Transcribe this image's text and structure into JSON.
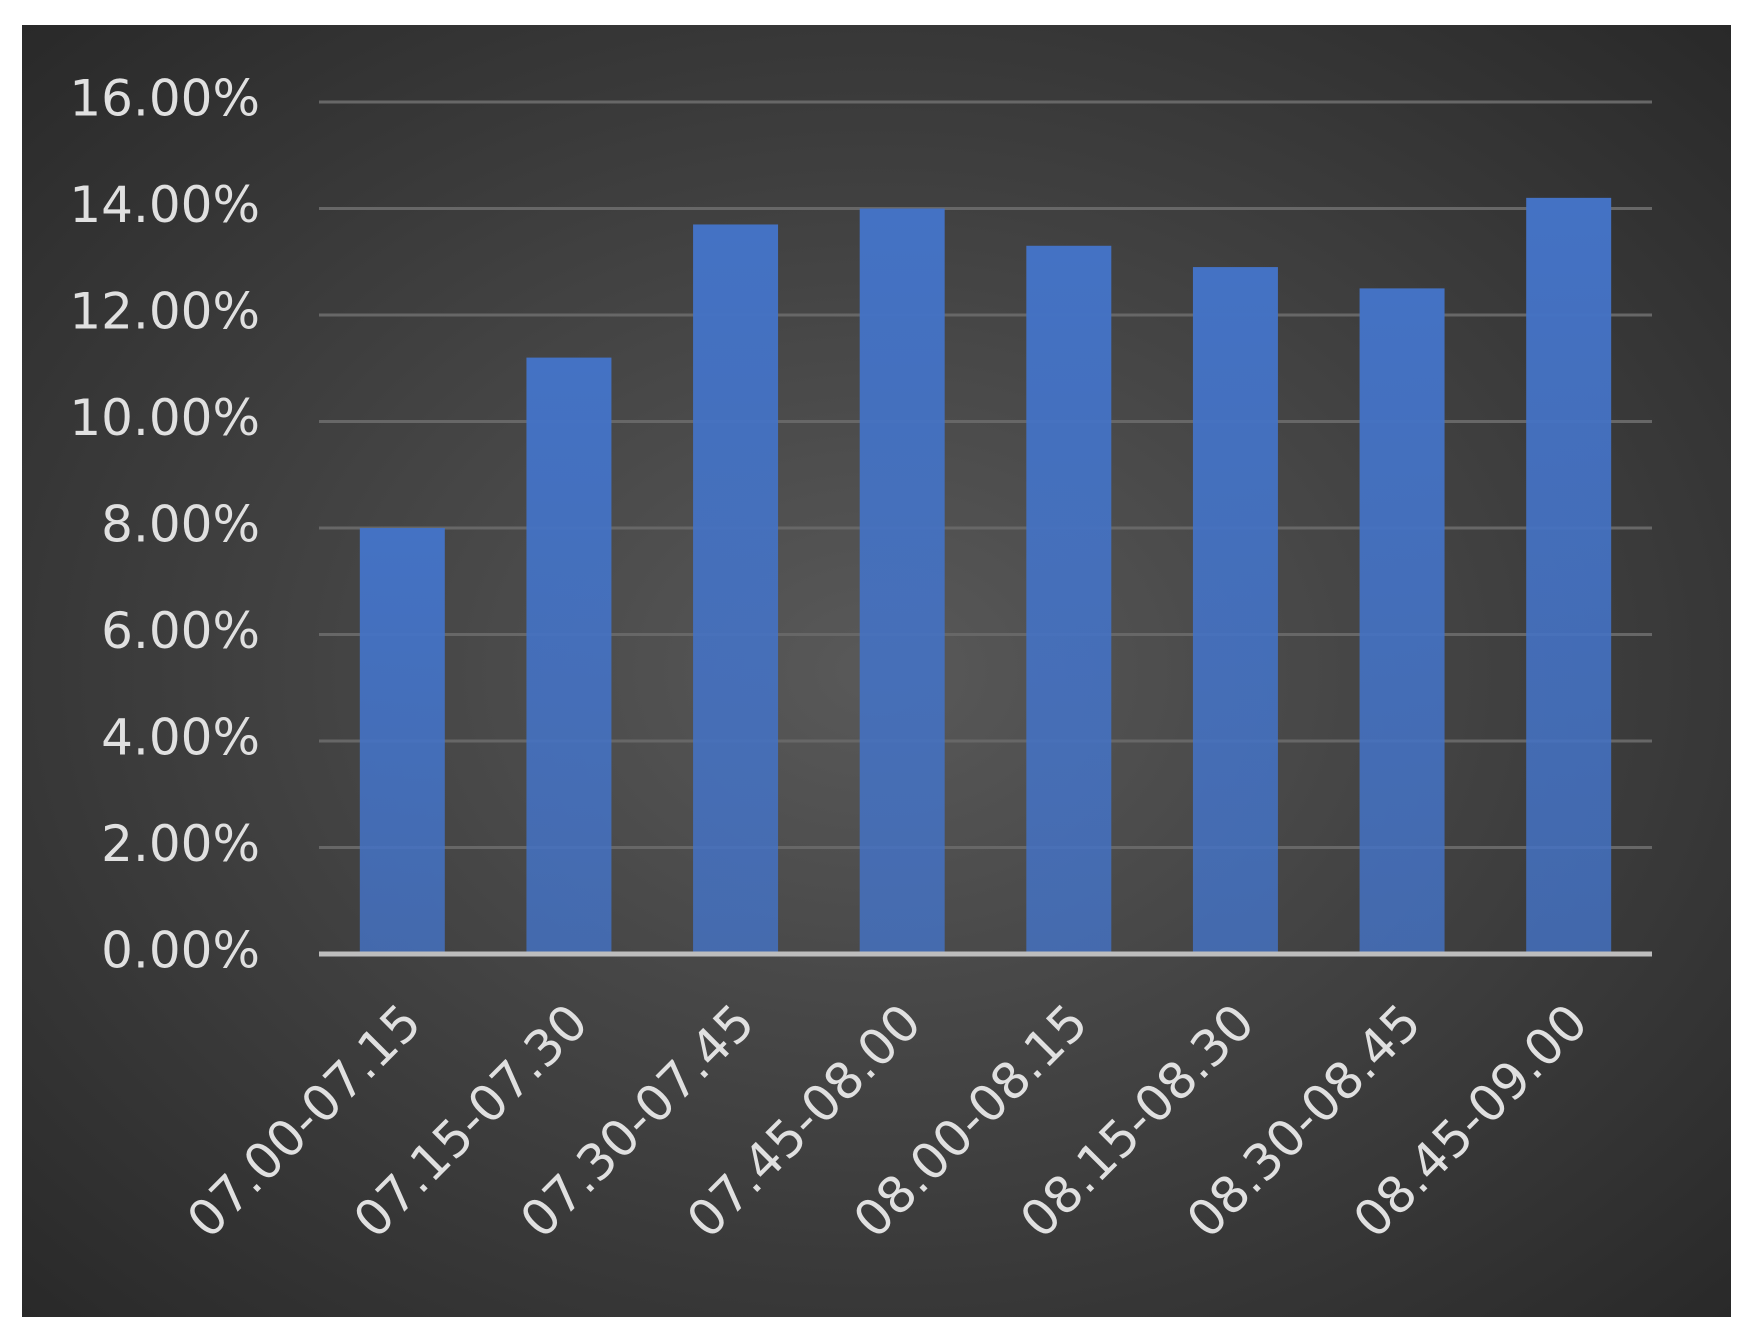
{
  "chart_data": {
    "type": "bar",
    "categories": [
      "07.00-07.15",
      "07.15-07.30",
      "07.30-07.45",
      "07.45-08.00",
      "08.00-08.15",
      "08.15-08.30",
      "08.30-08.45",
      "08.45-09.00"
    ],
    "values": [
      8.0,
      11.2,
      13.7,
      14.0,
      13.3,
      12.9,
      12.5,
      14.2
    ],
    "color": "#4472c4",
    "ylim": [
      0,
      16
    ],
    "yticks": [
      {
        "value": 0,
        "label": "0.00%"
      },
      {
        "value": 2,
        "label": "2.00%"
      },
      {
        "value": 4,
        "label": "4.00%"
      },
      {
        "value": 6,
        "label": "6.00%"
      },
      {
        "value": 8,
        "label": "8.00%"
      },
      {
        "value": 10,
        "label": "10.00%"
      },
      {
        "value": 12,
        "label": "12.00%"
      },
      {
        "value": 14,
        "label": "14.00%"
      },
      {
        "value": 16,
        "label": "16.00%"
      }
    ],
    "grid": true
  }
}
